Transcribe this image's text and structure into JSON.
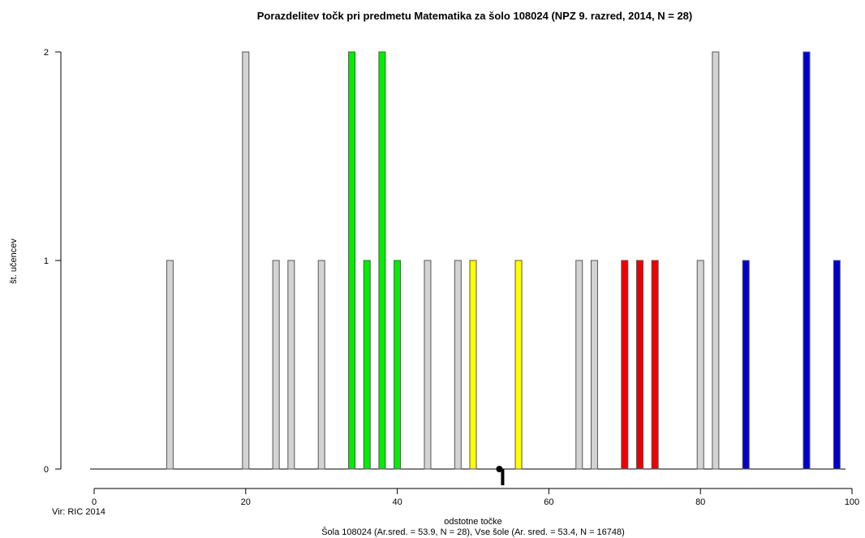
{
  "chart_data": {
    "type": "bar",
    "title": "Porazdelitev točk pri predmetu Matematika za šolo 108024 (NPZ 9. razred, 2014, N = 28)",
    "xlabel": "odstotne točke",
    "ylabel": "št. učencev",
    "subtitle": "Šola 108024 (Ar.sred. = 53.9, N = 28), Vse šole (Ar. sred. = 53.4, N = 16748)",
    "source_note": "Vir: RIC 2014",
    "xlim": [
      0,
      100
    ],
    "ylim": [
      0,
      2
    ],
    "xticks": [
      0,
      20,
      40,
      60,
      80,
      100
    ],
    "yticks": [
      0,
      1,
      2
    ],
    "school_mean_marker": 53.9,
    "colors": {
      "gray": "#d3d3d3",
      "green": "#00ee00",
      "yellow": "#ffff00",
      "red": "#ee0000",
      "blue": "#0000cc"
    },
    "bars": [
      {
        "x": 10,
        "count": 1,
        "color": "gray"
      },
      {
        "x": 20,
        "count": 2,
        "color": "gray"
      },
      {
        "x": 24,
        "count": 1,
        "color": "gray"
      },
      {
        "x": 26,
        "count": 1,
        "color": "gray"
      },
      {
        "x": 30,
        "count": 1,
        "color": "gray"
      },
      {
        "x": 34,
        "count": 2,
        "color": "green"
      },
      {
        "x": 36,
        "count": 1,
        "color": "green"
      },
      {
        "x": 38,
        "count": 2,
        "color": "green"
      },
      {
        "x": 40,
        "count": 1,
        "color": "green"
      },
      {
        "x": 44,
        "count": 1,
        "color": "gray"
      },
      {
        "x": 48,
        "count": 1,
        "color": "gray"
      },
      {
        "x": 50,
        "count": 1,
        "color": "yellow"
      },
      {
        "x": 56,
        "count": 1,
        "color": "yellow"
      },
      {
        "x": 64,
        "count": 1,
        "color": "gray"
      },
      {
        "x": 66,
        "count": 1,
        "color": "gray"
      },
      {
        "x": 70,
        "count": 1,
        "color": "red"
      },
      {
        "x": 72,
        "count": 1,
        "color": "red"
      },
      {
        "x": 74,
        "count": 1,
        "color": "red"
      },
      {
        "x": 80,
        "count": 1,
        "color": "gray"
      },
      {
        "x": 82,
        "count": 2,
        "color": "gray"
      },
      {
        "x": 86,
        "count": 1,
        "color": "blue"
      },
      {
        "x": 94,
        "count": 2,
        "color": "blue"
      },
      {
        "x": 98,
        "count": 1,
        "color": "blue"
      }
    ]
  }
}
